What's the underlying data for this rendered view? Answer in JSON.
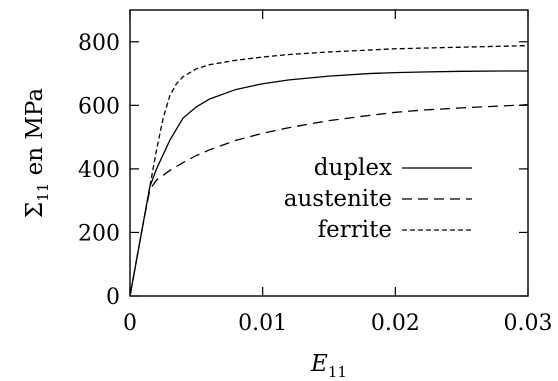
{
  "chart_data": {
    "type": "line",
    "xlabel": {
      "main": "E",
      "sub": "11"
    },
    "ylabel": {
      "main": "Σ",
      "sub": "11",
      "suffix": " en MPa"
    },
    "xlim": [
      0,
      0.03
    ],
    "ylim": [
      0,
      900
    ],
    "xticks": [
      0,
      0.01,
      0.02,
      0.03
    ],
    "xtick_labels": [
      "0",
      "0.01",
      "0.02",
      "0.03"
    ],
    "yticks": [
      0,
      200,
      400,
      600,
      800
    ],
    "ytick_labels": [
      "0",
      "200",
      "400",
      "600",
      "800"
    ],
    "grid": false,
    "legend_position": "center-right",
    "series": [
      {
        "name": "duplex",
        "style": "solid",
        "x": [
          0,
          0.001,
          0.0015,
          0.002,
          0.003,
          0.004,
          0.005,
          0.006,
          0.008,
          0.01,
          0.012,
          0.015,
          0.018,
          0.02,
          0.022,
          0.025,
          0.028,
          0.03
        ],
        "y": [
          0,
          230,
          345,
          400,
          490,
          560,
          595,
          620,
          650,
          668,
          680,
          692,
          700,
          703,
          705,
          707,
          708,
          708
        ]
      },
      {
        "name": "austenite",
        "style": "dashed",
        "x": [
          0,
          0.001,
          0.0015,
          0.002,
          0.003,
          0.004,
          0.005,
          0.006,
          0.008,
          0.01,
          0.012,
          0.015,
          0.018,
          0.02,
          0.022,
          0.025,
          0.028,
          0.03
        ],
        "y": [
          0,
          230,
          335,
          365,
          395,
          420,
          442,
          460,
          490,
          512,
          530,
          552,
          568,
          578,
          585,
          592,
          598,
          602
        ]
      },
      {
        "name": "ferrite",
        "style": "dotted-dash",
        "x": [
          0,
          0.001,
          0.0015,
          0.002,
          0.0025,
          0.003,
          0.0035,
          0.004,
          0.005,
          0.006,
          0.008,
          0.01,
          0.012,
          0.015,
          0.018,
          0.02,
          0.022,
          0.025,
          0.028,
          0.03
        ],
        "y": [
          0,
          230,
          345,
          460,
          560,
          630,
          668,
          690,
          715,
          728,
          742,
          752,
          760,
          768,
          774,
          778,
          780,
          783,
          786,
          788
        ]
      }
    ]
  }
}
